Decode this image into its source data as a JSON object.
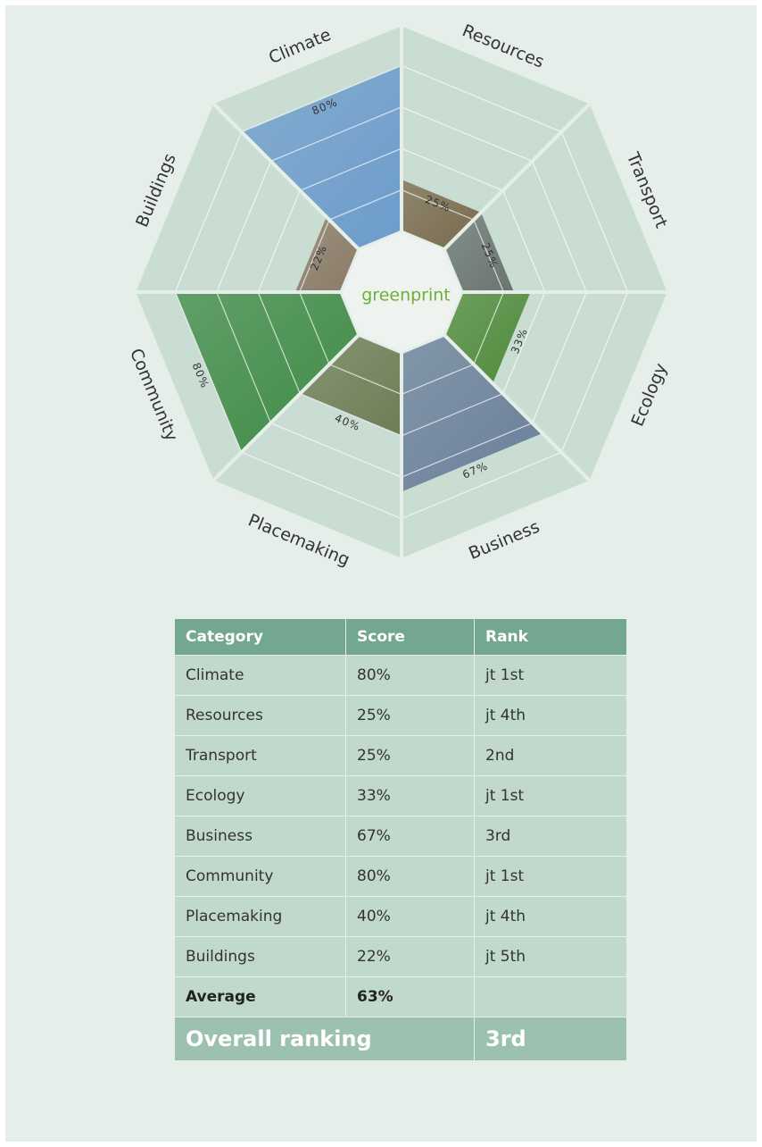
{
  "chart_data": {
    "type": "octagon",
    "center_label": "greenprint",
    "categories": [
      "Climate",
      "Resources",
      "Transport",
      "Ecology",
      "Business",
      "Placemaking",
      "Community",
      "Buildings"
    ],
    "values": [
      80,
      25,
      25,
      33,
      67,
      40,
      80,
      22
    ],
    "value_labels": [
      "80%",
      "25%",
      "25%",
      "33%",
      "67%",
      "40%",
      "80%",
      "22%"
    ],
    "colors": [
      "#6d9ccc",
      "#7a6a4c",
      "#6b7570",
      "#4f8a3a",
      "#6a7f9a",
      "#6f7d55",
      "#3f8a45",
      "#8a7a66"
    ],
    "rlim": [
      0,
      100
    ],
    "rticks": [
      20,
      40,
      60,
      80
    ],
    "grid": true
  },
  "table": {
    "header": [
      "Category",
      "Score",
      "Rank"
    ],
    "rows": [
      [
        "Climate",
        "80%",
        "jt 1st"
      ],
      [
        "Resources",
        "25%",
        "jt 4th"
      ],
      [
        "Transport",
        "25%",
        "2nd"
      ],
      [
        "Ecology",
        "33%",
        "jt 1st"
      ],
      [
        "Business",
        "67%",
        "3rd"
      ],
      [
        "Community",
        "80%",
        "jt 1st"
      ],
      [
        "Placemaking",
        "40%",
        "jt 4th"
      ],
      [
        "Buildings",
        "22%",
        "jt 5th"
      ]
    ],
    "average": [
      "Average",
      "63%"
    ],
    "overall": [
      "Overall ranking",
      "3rd"
    ]
  }
}
